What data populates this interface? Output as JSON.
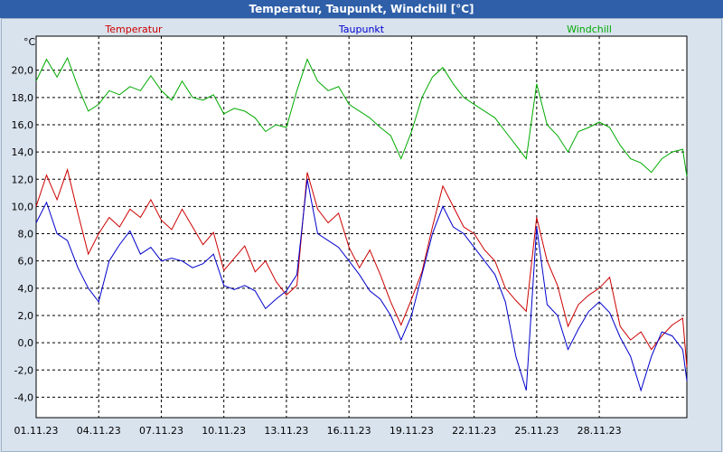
{
  "window": {
    "title": "Temperatur, Taupunkt, Windchill [°C]"
  },
  "chart_data": {
    "type": "line",
    "ylabel": "°C",
    "ylim": [
      -5.5,
      22.5
    ],
    "yticks": [
      "20,0",
      "18,0",
      "16,0",
      "14,0",
      "12,0",
      "10,0",
      "8,0",
      "6,0",
      "4,0",
      "2,0",
      "0,0",
      "-2,0",
      "-4,0"
    ],
    "ytick_values": [
      20,
      18,
      16,
      14,
      12,
      10,
      8,
      6,
      4,
      2,
      0,
      -2,
      -4
    ],
    "xlim": [
      0,
      31.2
    ],
    "xticks": [
      "01.11.23",
      "04.11.23",
      "07.11.23",
      "10.11.23",
      "13.11.23",
      "16.11.23",
      "19.11.23",
      "22.11.23",
      "25.11.23",
      "28.11.23"
    ],
    "xtick_values": [
      0,
      3,
      6,
      9,
      12,
      15,
      18,
      21,
      24,
      27
    ],
    "grid": true,
    "colors": {
      "Temperatur": "#cc0000",
      "Taupunkt": "#0000cc",
      "Windchill": "#00aa00"
    },
    "series": [
      {
        "name": "Temperatur",
        "x": [
          0,
          0.5,
          1,
          1.5,
          2,
          2.5,
          3,
          3.5,
          4,
          4.5,
          5,
          5.5,
          6,
          6.5,
          7,
          7.5,
          8,
          8.5,
          9,
          9.5,
          10,
          10.5,
          11,
          11.5,
          12,
          12.5,
          13,
          13.5,
          14,
          14.5,
          15,
          15.5,
          16,
          16.5,
          17,
          17.5,
          18,
          18.5,
          19,
          19.5,
          20,
          20.5,
          21,
          21.5,
          22,
          22.5,
          23,
          23.5,
          24,
          24.5,
          25,
          25.5,
          26,
          26.5,
          27,
          27.5,
          28,
          28.5,
          29,
          29.5,
          30,
          30.5,
          31,
          31.2
        ],
        "values": [
          10.0,
          12.3,
          10.5,
          12.7,
          9.5,
          6.5,
          8.0,
          9.2,
          8.5,
          9.8,
          9.2,
          10.5,
          9.0,
          8.3,
          9.8,
          8.5,
          7.2,
          8.1,
          5.3,
          6.2,
          7.1,
          5.2,
          6.0,
          4.5,
          3.5,
          4.2,
          12.5,
          9.8,
          8.8,
          9.5,
          7.0,
          5.5,
          6.8,
          5.0,
          3.0,
          1.3,
          3.2,
          5.2,
          8.5,
          11.5,
          10.0,
          8.5,
          8.0,
          6.8,
          6.0,
          4.0,
          3.1,
          2.3,
          9.2,
          6.0,
          4.2,
          1.2,
          2.8,
          3.5,
          4.0,
          4.8,
          1.2,
          0.2,
          0.8,
          -0.5,
          0.5,
          1.3,
          1.8,
          -1.8
        ]
      },
      {
        "name": "Taupunkt",
        "x": [
          0,
          0.5,
          1,
          1.5,
          2,
          2.5,
          3,
          3.5,
          4,
          4.5,
          5,
          5.5,
          6,
          6.5,
          7,
          7.5,
          8,
          8.5,
          9,
          9.5,
          10,
          10.5,
          11,
          11.5,
          12,
          12.5,
          13,
          13.5,
          14,
          14.5,
          15,
          15.5,
          16,
          16.5,
          17,
          17.5,
          18,
          18.5,
          19,
          19.5,
          20,
          20.5,
          21,
          21.5,
          22,
          22.5,
          23,
          23.5,
          24,
          24.5,
          25,
          25.5,
          26,
          26.5,
          27,
          27.5,
          28,
          28.5,
          29,
          29.5,
          30,
          30.5,
          31,
          31.2
        ],
        "values": [
          8.8,
          10.3,
          8.0,
          7.5,
          5.5,
          4.0,
          3.0,
          6.0,
          7.2,
          8.2,
          6.5,
          7.0,
          6.0,
          6.2,
          6.0,
          5.5,
          5.8,
          6.5,
          4.2,
          3.9,
          4.2,
          3.8,
          2.5,
          3.2,
          3.8,
          5.0,
          12.0,
          8.0,
          7.5,
          7.0,
          6.0,
          5.0,
          3.8,
          3.2,
          2.0,
          0.2,
          2.0,
          5.0,
          8.0,
          10.0,
          8.5,
          8.0,
          7.0,
          6.0,
          5.0,
          3.0,
          -1.0,
          -3.5,
          8.5,
          2.8,
          2.0,
          -0.5,
          1.0,
          2.3,
          3.0,
          2.2,
          0.4,
          -1.0,
          -3.5,
          -1.0,
          0.8,
          0.5,
          -0.5,
          -2.8
        ]
      },
      {
        "name": "Windchill",
        "x": [
          0,
          0.5,
          1,
          1.5,
          2,
          2.5,
          3,
          3.5,
          4,
          4.5,
          5,
          5.5,
          6,
          6.5,
          7,
          7.5,
          8,
          8.5,
          9,
          9.5,
          10,
          10.5,
          11,
          11.5,
          12,
          12.5,
          13,
          13.5,
          14,
          14.5,
          15,
          15.5,
          16,
          16.5,
          17,
          17.5,
          18,
          18.5,
          19,
          19.5,
          20,
          20.5,
          21,
          21.5,
          22,
          22.5,
          23,
          23.5,
          24,
          24.5,
          25,
          25.5,
          26,
          26.5,
          27,
          27.5,
          28,
          28.5,
          29,
          29.5,
          30,
          30.5,
          31,
          31.2
        ],
        "values": [
          19.2,
          20.8,
          19.5,
          20.9,
          18.8,
          17.0,
          17.5,
          18.5,
          18.2,
          18.8,
          18.5,
          19.6,
          18.5,
          17.8,
          19.2,
          18.0,
          17.8,
          18.2,
          16.8,
          17.2,
          17.0,
          16.5,
          15.5,
          16.0,
          15.8,
          18.5,
          20.8,
          19.2,
          18.5,
          18.8,
          17.5,
          17.0,
          16.5,
          15.8,
          15.2,
          13.5,
          15.5,
          18.0,
          19.5,
          20.2,
          19.0,
          18.0,
          17.5,
          17.0,
          16.5,
          15.5,
          14.5,
          13.5,
          19.0,
          16.0,
          15.2,
          14.0,
          15.5,
          15.8,
          16.2,
          15.8,
          14.5,
          13.5,
          13.2,
          12.5,
          13.5,
          14.0,
          14.2,
          12.2
        ]
      }
    ]
  }
}
